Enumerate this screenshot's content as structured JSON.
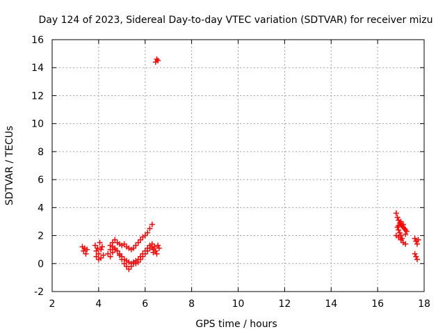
{
  "chart_data": {
    "type": "scatter",
    "title": "Day 124 of 2023, Sidereal Day-to-day VTEC variation (SDTVAR) for receiver mizu",
    "xlabel": "GPS time / hours",
    "ylabel": "SDTVAR / TECUs",
    "xlim": [
      2,
      18
    ],
    "ylim": [
      -2,
      16
    ],
    "xticks": [
      "2",
      "4",
      "6",
      "8",
      "10",
      "12",
      "14",
      "16",
      "18"
    ],
    "yticks": [
      "-2",
      "0",
      "2",
      "4",
      "6",
      "8",
      "10",
      "12",
      "14",
      "16"
    ],
    "grid": true,
    "marker": "plus",
    "color": "#ff0000",
    "series": [
      {
        "values": [
          [
            3.3,
            1.2
          ],
          [
            3.35,
            0.9
          ],
          [
            3.4,
            1.1
          ],
          [
            3.45,
            0.7
          ],
          [
            3.5,
            1.0
          ],
          [
            3.85,
            1.3
          ],
          [
            3.9,
            0.9
          ],
          [
            3.9,
            0.5
          ],
          [
            3.95,
            1.1
          ],
          [
            4.0,
            0.7
          ],
          [
            4.0,
            0.3
          ],
          [
            4.05,
            1.5
          ],
          [
            4.1,
            1.0
          ],
          [
            4.1,
            0.4
          ],
          [
            4.15,
            1.2
          ],
          [
            4.2,
            0.6
          ],
          [
            4.5,
            1.3
          ],
          [
            4.6,
            1.5
          ],
          [
            4.7,
            1.7
          ],
          [
            4.8,
            1.5
          ],
          [
            4.9,
            1.4
          ],
          [
            5.0,
            1.3
          ],
          [
            5.1,
            1.4
          ],
          [
            5.2,
            1.2
          ],
          [
            5.3,
            1.1
          ],
          [
            5.4,
            1.0
          ],
          [
            5.5,
            1.1
          ],
          [
            5.6,
            1.3
          ],
          [
            5.7,
            1.5
          ],
          [
            5.8,
            1.7
          ],
          [
            5.9,
            1.9
          ],
          [
            6.0,
            2.0
          ],
          [
            6.1,
            2.2
          ],
          [
            6.2,
            2.5
          ],
          [
            6.3,
            2.8
          ],
          [
            4.5,
            0.5
          ],
          [
            4.6,
            0.8
          ],
          [
            4.7,
            1.0
          ],
          [
            4.8,
            0.9
          ],
          [
            4.9,
            0.7
          ],
          [
            5.0,
            0.5
          ],
          [
            5.1,
            0.3
          ],
          [
            5.2,
            0.2
          ],
          [
            5.3,
            0.1
          ],
          [
            5.4,
            0.0
          ],
          [
            5.5,
            0.1
          ],
          [
            5.6,
            0.2
          ],
          [
            5.7,
            0.3
          ],
          [
            5.8,
            0.5
          ],
          [
            5.9,
            0.7
          ],
          [
            6.0,
            0.9
          ],
          [
            6.1,
            1.1
          ],
          [
            6.2,
            1.3
          ],
          [
            6.3,
            1.4
          ],
          [
            4.4,
            0.7
          ],
          [
            4.5,
            1.0
          ],
          [
            4.6,
            1.2
          ],
          [
            4.7,
            1.1
          ],
          [
            4.8,
            0.9
          ],
          [
            4.9,
            0.6
          ],
          [
            5.0,
            0.3
          ],
          [
            5.1,
            0.0
          ],
          [
            5.2,
            -0.2
          ],
          [
            5.3,
            -0.4
          ],
          [
            5.4,
            -0.2
          ],
          [
            5.5,
            0.0
          ],
          [
            5.6,
            0.0
          ],
          [
            5.7,
            0.1
          ],
          [
            5.8,
            0.3
          ],
          [
            5.9,
            0.5
          ],
          [
            6.0,
            0.7
          ],
          [
            6.1,
            0.9
          ],
          [
            6.2,
            1.1
          ],
          [
            6.35,
            1.0
          ],
          [
            6.4,
            1.2
          ],
          [
            6.45,
            0.9
          ],
          [
            6.5,
            0.7
          ],
          [
            6.55,
            1.3
          ],
          [
            6.6,
            1.1
          ],
          [
            6.35,
            0.8
          ],
          [
            6.3,
            1.2
          ],
          [
            6.45,
            14.4
          ],
          [
            6.5,
            14.6
          ],
          [
            6.55,
            14.5
          ],
          [
            16.8,
            3.6
          ],
          [
            16.85,
            3.3
          ],
          [
            16.9,
            3.1
          ],
          [
            16.95,
            2.9
          ],
          [
            17.0,
            2.8
          ],
          [
            17.05,
            2.7
          ],
          [
            17.1,
            2.6
          ],
          [
            17.15,
            2.5
          ],
          [
            17.2,
            2.4
          ],
          [
            17.25,
            2.3
          ],
          [
            16.85,
            2.6
          ],
          [
            16.9,
            2.4
          ],
          [
            16.95,
            2.2
          ],
          [
            17.0,
            2.0
          ],
          [
            17.05,
            1.8
          ],
          [
            16.8,
            2.0
          ],
          [
            16.9,
            1.9
          ],
          [
            17.0,
            1.7
          ],
          [
            17.1,
            1.5
          ],
          [
            17.2,
            1.4
          ],
          [
            16.9,
            2.7
          ],
          [
            17.0,
            3.0
          ],
          [
            17.1,
            2.8
          ],
          [
            17.2,
            2.1
          ],
          [
            17.6,
            1.8
          ],
          [
            17.65,
            1.6
          ],
          [
            17.7,
            1.4
          ],
          [
            17.75,
            1.7
          ],
          [
            17.6,
            0.7
          ],
          [
            17.65,
            0.5
          ],
          [
            17.7,
            0.3
          ]
        ]
      }
    ]
  }
}
